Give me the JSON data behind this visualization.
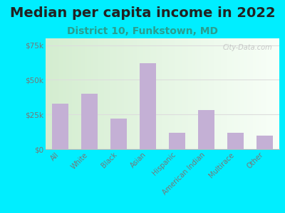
{
  "title": "Median per capita income in 2022",
  "subtitle": "District 10, Funkstown, MD",
  "categories": [
    "All",
    "White",
    "Black",
    "Asian",
    "Hispanic",
    "American Indian",
    "Multirace",
    "Other"
  ],
  "values": [
    33000,
    40000,
    22000,
    62000,
    12000,
    28000,
    12000,
    10000
  ],
  "bar_color": "#c4b0d5",
  "background_outer": "#00eeff",
  "ylim": [
    0,
    80000
  ],
  "yticks": [
    0,
    25000,
    50000,
    75000
  ],
  "ytick_labels": [
    "$0",
    "$25k",
    "$50k",
    "$75k"
  ],
  "title_fontsize": 14,
  "subtitle_fontsize": 10,
  "title_color": "#222222",
  "subtitle_color": "#2a9d8f",
  "tick_color": "#777777",
  "grid_color": "#dddddd",
  "watermark": "City-Data.com",
  "grad_left": "#c8e6c0",
  "grad_right": "#f5fff5"
}
